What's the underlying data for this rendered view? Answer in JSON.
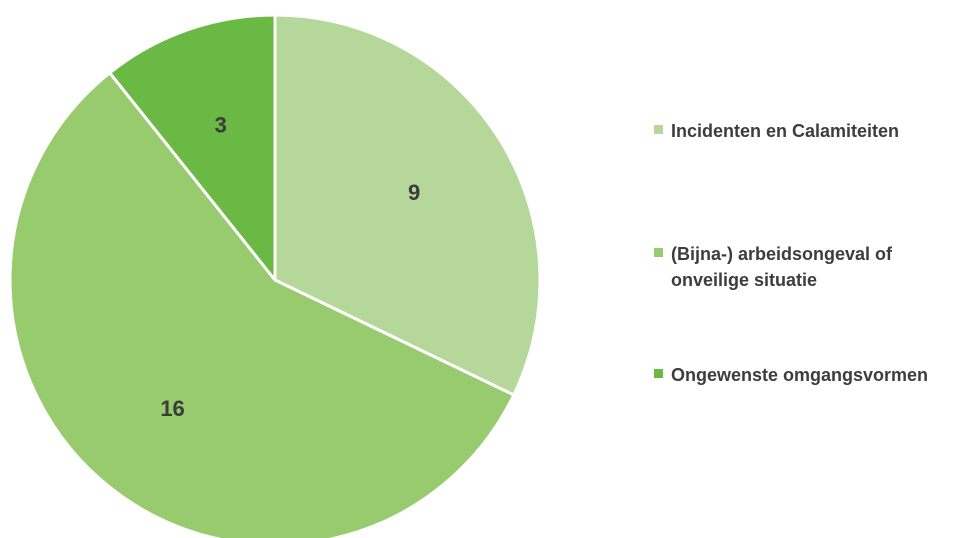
{
  "chart_data": {
    "type": "pie",
    "title": "",
    "categories": [
      "Incidenten en Calamiteiten",
      "(Bijna-) arbeidsongeval of onveilige situatie",
      "Ongewenste omgangsvormen"
    ],
    "values": [
      9,
      16,
      3
    ],
    "value_labels": [
      "9",
      "16",
      "3"
    ],
    "colors": [
      "#b5d89a",
      "#97cb6d",
      "#6ab944"
    ],
    "start_angle": "12 o'clock",
    "direction": "clockwise",
    "legend_position": "right"
  },
  "legend": {
    "items": [
      {
        "label": "Incidenten en Calamiteiten",
        "color": "#b5d89a"
      },
      {
        "label": "(Bijna-) arbeidsongeval of onveilige situatie",
        "color": "#97cb6d"
      },
      {
        "label": "Ongewenste omgangsvormen",
        "color": "#6ab944"
      }
    ]
  }
}
